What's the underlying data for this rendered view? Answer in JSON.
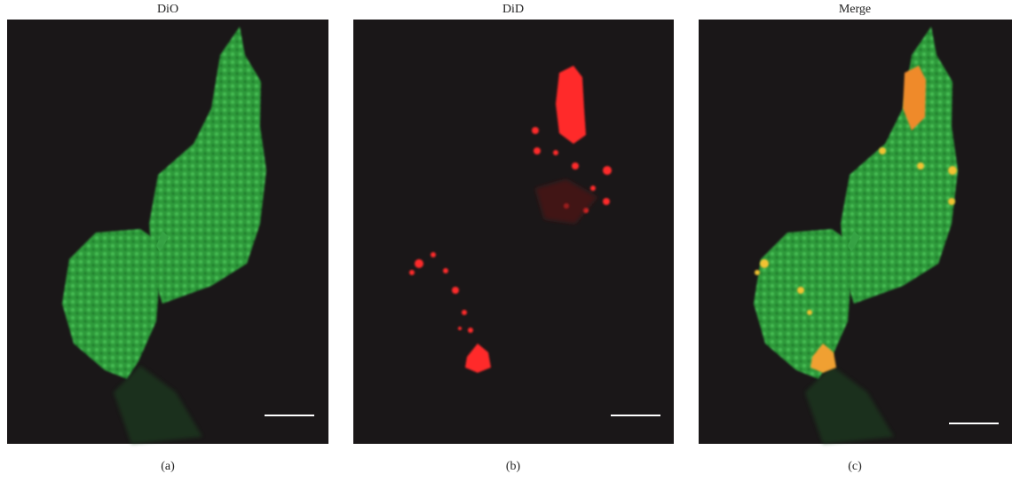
{
  "panels": [
    {
      "title": "DiO",
      "caption": "(a)"
    },
    {
      "title": "DiD",
      "caption": "(b)"
    },
    {
      "title": "Merge",
      "caption": "(c)"
    }
  ]
}
